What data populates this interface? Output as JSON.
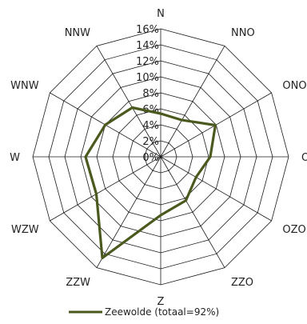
{
  "chart_data": {
    "type": "radar",
    "directions": [
      "N",
      "NNO",
      "ONO",
      "O",
      "OZO",
      "ZZO",
      "Z",
      "ZZW",
      "WZW",
      "W",
      "WNW",
      "NNW"
    ],
    "ticks": [
      "0%",
      "2%",
      "4%",
      "6%",
      "8%",
      "10%",
      "12%",
      "14%",
      "16%"
    ],
    "rmax": 16,
    "grid_rings": 8,
    "grid": true,
    "legend_position": "bottom",
    "series": [
      {
        "name": "Zeewolde (totaal=92%)",
        "color": "#4a5a1e",
        "values": [
          5.4,
          5.3,
          7.9,
          6.2,
          5.1,
          6.3,
          7.3,
          14.6,
          9.3,
          9.4,
          8.0,
          7.1
        ]
      }
    ]
  }
}
